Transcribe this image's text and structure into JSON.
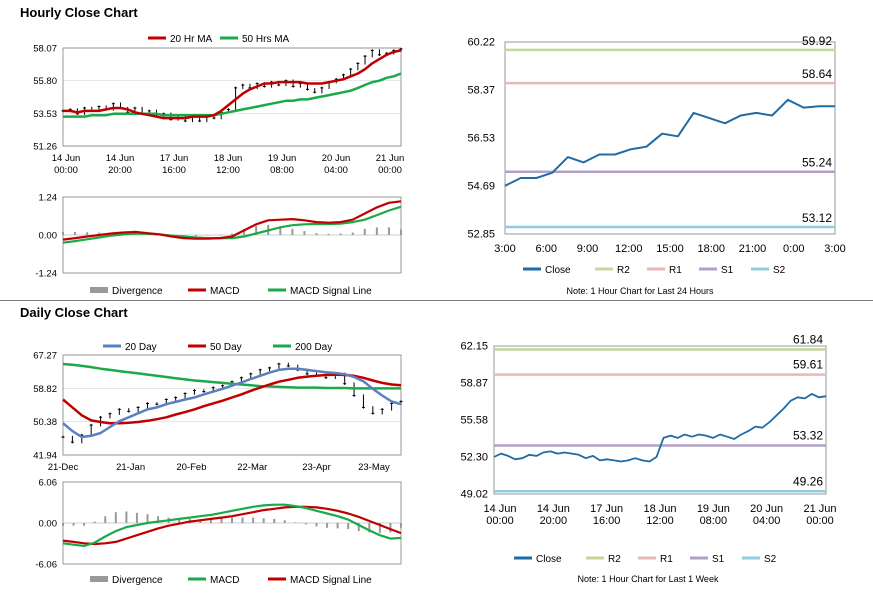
{
  "sections": {
    "hourly_title": "Hourly Close Chart",
    "daily_title": "Daily Close Chart"
  },
  "colors": {
    "ma_red": "#c00000",
    "ma_green": "#1aaa4a",
    "ma_blue": "#5b80bf",
    "close": "#1f6ba5",
    "r2": "#c4d79b",
    "r1": "#e6b8b7",
    "s1": "#b1a0c7",
    "s2": "#92cddc",
    "divergence": "#999999",
    "candle": "#000000"
  },
  "chart_data": [
    {
      "id": "hourly_price",
      "type": "line",
      "title": "",
      "legend": [
        "20 Hr MA",
        "50 Hrs MA"
      ],
      "y_ticks": [
        "58.07",
        "55.80",
        "53.53",
        "51.26"
      ],
      "x_labels": [
        [
          "14 Jun",
          "00:00"
        ],
        [
          "14 Jun",
          "20:00"
        ],
        [
          "17 Jun",
          "16:00"
        ],
        [
          "18 Jun",
          "12:00"
        ],
        [
          "19 Jun",
          "08:00"
        ],
        [
          "20 Jun",
          "04:00"
        ],
        [
          "21 Jun",
          "00:00"
        ]
      ],
      "ylim": [
        51.26,
        58.07
      ],
      "close": [
        53.7,
        53.8,
        53.5,
        53.9,
        53.7,
        54.0,
        53.8,
        54.2,
        53.9,
        53.6,
        53.9,
        53.5,
        53.7,
        53.3,
        53.5,
        53.1,
        53.4,
        53.0,
        53.3,
        53.0,
        53.4,
        53.2,
        53.6,
        53.8,
        55.3,
        55.5,
        55.3,
        55.6,
        55.4,
        55.7,
        55.5,
        55.8,
        55.4,
        55.6,
        55.2,
        55.0,
        55.3,
        55.7,
        55.9,
        56.2,
        56.6,
        57.0,
        57.5,
        57.9,
        57.6,
        57.7,
        57.9,
        58.0
      ],
      "ma20": [
        53.7,
        53.7,
        53.6,
        53.7,
        53.7,
        53.7,
        53.8,
        53.9,
        53.9,
        53.8,
        53.6,
        53.5,
        53.4,
        53.3,
        53.2,
        53.2,
        53.2,
        53.2,
        53.3,
        53.3,
        53.3,
        53.4,
        53.7,
        54.1,
        54.5,
        54.9,
        55.2,
        55.4,
        55.6,
        55.6,
        55.7,
        55.7,
        55.7,
        55.7,
        55.6,
        55.6,
        55.6,
        55.7,
        55.8,
        55.9,
        56.1,
        56.3,
        56.6,
        57.0,
        57.3,
        57.6,
        57.8,
        57.9
      ],
      "ma50": [
        53.3,
        53.3,
        53.3,
        53.3,
        53.4,
        53.4,
        53.4,
        53.5,
        53.5,
        53.5,
        53.5,
        53.5,
        53.5,
        53.5,
        53.4,
        53.4,
        53.4,
        53.4,
        53.4,
        53.4,
        53.4,
        53.4,
        53.5,
        53.6,
        53.7,
        53.8,
        53.9,
        54.0,
        54.1,
        54.2,
        54.3,
        54.4,
        54.4,
        54.5,
        54.5,
        54.6,
        54.7,
        54.8,
        54.9,
        55.0,
        55.1,
        55.3,
        55.5,
        55.7,
        55.8,
        56.0,
        56.1,
        56.3
      ]
    },
    {
      "id": "hourly_macd",
      "type": "line",
      "legend": [
        "Divergence",
        "MACD",
        "MACD Signal Line"
      ],
      "y_ticks": [
        "1.24",
        "0.00",
        "-1.24"
      ],
      "ylim": [
        -1.24,
        1.24
      ],
      "macd": [
        -0.15,
        -0.1,
        -0.05,
        0.0,
        0.05,
        0.08,
        0.1,
        0.06,
        0.02,
        -0.05,
        -0.1,
        -0.12,
        -0.12,
        -0.1,
        -0.05,
        0.15,
        0.35,
        0.48,
        0.5,
        0.52,
        0.48,
        0.42,
        0.4,
        0.42,
        0.5,
        0.7,
        0.9,
        1.05,
        1.1
      ],
      "signal": [
        -0.25,
        -0.2,
        -0.14,
        -0.08,
        -0.02,
        0.02,
        0.05,
        0.04,
        0.02,
        -0.02,
        -0.05,
        -0.08,
        -0.1,
        -0.1,
        -0.1,
        -0.05,
        0.05,
        0.15,
        0.25,
        0.32,
        0.35,
        0.36,
        0.36,
        0.37,
        0.42,
        0.5,
        0.65,
        0.8,
        0.92
      ],
      "divergence": [
        0.1,
        0.1,
        0.09,
        0.08,
        0.07,
        0.06,
        0.05,
        0.02,
        0.0,
        -0.03,
        -0.05,
        -0.04,
        -0.02,
        0.0,
        0.05,
        0.2,
        0.3,
        0.33,
        0.25,
        0.2,
        0.13,
        0.06,
        0.04,
        0.05,
        0.08,
        0.2,
        0.25,
        0.25,
        0.18
      ]
    },
    {
      "id": "hourly_pivots",
      "type": "line",
      "y_ticks": [
        "60.22",
        "58.37",
        "56.53",
        "54.69",
        "52.85"
      ],
      "x_labels": [
        "3:00",
        "6:00",
        "9:00",
        "12:00",
        "15:00",
        "18:00",
        "21:00",
        "0:00",
        "3:00"
      ],
      "ylim": [
        52.85,
        60.22
      ],
      "close": [
        54.7,
        55.0,
        55.0,
        55.2,
        55.8,
        55.6,
        55.9,
        55.9,
        56.1,
        56.2,
        56.7,
        56.6,
        57.5,
        57.3,
        57.1,
        57.4,
        57.5,
        57.4,
        58.0,
        57.7,
        57.75,
        57.75
      ],
      "levels": {
        "R2": 59.92,
        "R1": 58.64,
        "S1": 55.24,
        "S2": 53.12
      },
      "level_labels": [
        "59.92",
        "58.64",
        "55.24",
        "53.12"
      ],
      "legend": [
        "Close",
        "R2",
        "R1",
        "S1",
        "S2"
      ],
      "note": "Note: 1 Hour Chart for Last 24 Hours"
    },
    {
      "id": "daily_price",
      "type": "line",
      "legend": [
        "20 Day",
        "50 Day",
        "200 Day"
      ],
      "y_ticks": [
        "67.27",
        "58.82",
        "50.38",
        "41.94"
      ],
      "x_labels": [
        "21-Dec",
        "21-Jan",
        "20-Feb",
        "22-Mar",
        "23-Apr",
        "23-May"
      ],
      "ylim": [
        41.94,
        67.27
      ],
      "close": [
        46.5,
        45.2,
        47.0,
        49.5,
        51.5,
        52.4,
        53.5,
        53.0,
        54.0,
        55.0,
        54.8,
        56.0,
        56.5,
        57.5,
        58.3,
        58.0,
        59.0,
        59.5,
        60.5,
        61.5,
        62.5,
        63.5,
        64.0,
        65.0,
        64.5,
        63.5,
        62.5,
        62.0,
        61.5,
        62.5,
        60.0,
        57.0,
        54.0,
        52.5,
        53.5,
        55.0,
        55.5
      ],
      "ma20": [
        50.0,
        48.0,
        46.5,
        46.8,
        47.5,
        49.0,
        50.5,
        51.5,
        52.5,
        53.5,
        54.0,
        54.8,
        55.4,
        56.0,
        56.5,
        57.3,
        58.0,
        58.7,
        59.5,
        60.3,
        61.2,
        62.0,
        62.8,
        63.5,
        63.8,
        63.8,
        63.5,
        63.2,
        62.9,
        62.7,
        62.4,
        61.7,
        60.6,
        58.7,
        57.0,
        55.5,
        54.8
      ],
      "ma50": [
        56.0,
        54.0,
        52.0,
        50.7,
        50.3,
        50.0,
        50.0,
        50.1,
        50.3,
        50.6,
        51.0,
        51.5,
        52.2,
        52.8,
        53.5,
        54.3,
        55.0,
        55.7,
        56.5,
        57.3,
        58.2,
        59.0,
        59.8,
        60.5,
        61.0,
        61.5,
        61.8,
        62.0,
        62.2,
        62.3,
        62.2,
        62.0,
        61.5,
        60.8,
        60.2,
        59.8,
        59.6
      ],
      "ma200": [
        65.0,
        64.8,
        64.5,
        64.2,
        63.8,
        63.5,
        63.2,
        62.9,
        62.6,
        62.3,
        62.0,
        61.7,
        61.4,
        61.1,
        60.8,
        60.6,
        60.4,
        60.2,
        60.0,
        59.8,
        59.6,
        59.4,
        59.3,
        59.2,
        59.1,
        59.0,
        59.0,
        59.0,
        58.9,
        58.9,
        58.9,
        58.8,
        58.8,
        58.8,
        58.8,
        58.8,
        58.8
      ]
    },
    {
      "id": "daily_macd",
      "type": "line",
      "legend": [
        "Divergence",
        "MACD",
        "MACD Signal Line"
      ],
      "y_ticks": [
        "6.06",
        "0.00",
        "-6.06"
      ],
      "ylim": [
        -6.06,
        6.06
      ],
      "macd": [
        -3.0,
        -3.2,
        -3.4,
        -2.9,
        -2.0,
        -1.2,
        -0.6,
        -0.3,
        0.0,
        0.2,
        0.4,
        0.6,
        0.8,
        1.0,
        1.2,
        1.5,
        1.8,
        2.1,
        2.4,
        2.6,
        2.7,
        2.7,
        2.5,
        2.2,
        1.8,
        1.4,
        1.0,
        0.5,
        -0.3,
        -1.1,
        -1.8,
        -2.3,
        -2.2
      ],
      "signal": [
        -2.6,
        -2.8,
        -3.0,
        -3.1,
        -3.0,
        -2.8,
        -2.3,
        -1.8,
        -1.3,
        -0.8,
        -0.4,
        -0.1,
        0.2,
        0.4,
        0.6,
        0.8,
        1.0,
        1.3,
        1.6,
        1.9,
        2.1,
        2.3,
        2.4,
        2.4,
        2.3,
        2.1,
        1.8,
        1.4,
        0.9,
        0.3,
        -0.3,
        -0.9,
        -1.5
      ],
      "divergence": [
        -0.4,
        -0.4,
        -0.4,
        0.2,
        1.0,
        1.6,
        1.7,
        1.5,
        1.3,
        1.0,
        0.8,
        0.7,
        0.6,
        0.6,
        0.6,
        0.7,
        0.8,
        0.8,
        0.8,
        0.7,
        0.6,
        0.4,
        0.1,
        -0.2,
        -0.5,
        -0.7,
        -0.8,
        -0.9,
        -1.2,
        -1.4,
        -1.5,
        -1.4,
        -0.7
      ]
    },
    {
      "id": "daily_pivots",
      "type": "line",
      "y_ticks": [
        "62.15",
        "58.87",
        "55.58",
        "52.30",
        "49.02"
      ],
      "x_labels": [
        [
          "14 Jun",
          "00:00"
        ],
        [
          "14 Jun",
          "20:00"
        ],
        [
          "17 Jun",
          "16:00"
        ],
        [
          "18 Jun",
          "12:00"
        ],
        [
          "19 Jun",
          "08:00"
        ],
        [
          "20 Jun",
          "04:00"
        ],
        [
          "21 Jun",
          "00:00"
        ]
      ],
      "ylim": [
        49.02,
        62.15
      ],
      "close": [
        52.3,
        52.6,
        52.4,
        52.1,
        52.2,
        52.5,
        52.4,
        52.7,
        52.8,
        52.6,
        52.7,
        52.6,
        52.5,
        52.2,
        52.4,
        52.0,
        52.1,
        52.0,
        51.9,
        52.0,
        52.2,
        52.0,
        51.9,
        52.3,
        54.0,
        54.2,
        54.0,
        54.3,
        54.1,
        54.3,
        54.2,
        54.0,
        54.3,
        54.1,
        53.9,
        54.3,
        54.6,
        55.0,
        54.9,
        55.4,
        56.0,
        56.6,
        57.3,
        57.6,
        57.5,
        57.9,
        57.6,
        57.7
      ],
      "levels": {
        "R2": 61.84,
        "R1": 59.61,
        "S1": 53.32,
        "S2": 49.26
      },
      "level_labels": [
        "61.84",
        "59.61",
        "53.32",
        "49.26"
      ],
      "legend": [
        "Close",
        "R2",
        "R1",
        "S1",
        "S2"
      ],
      "note": "Note: 1 Hour Chart for Last 1 Week"
    }
  ]
}
